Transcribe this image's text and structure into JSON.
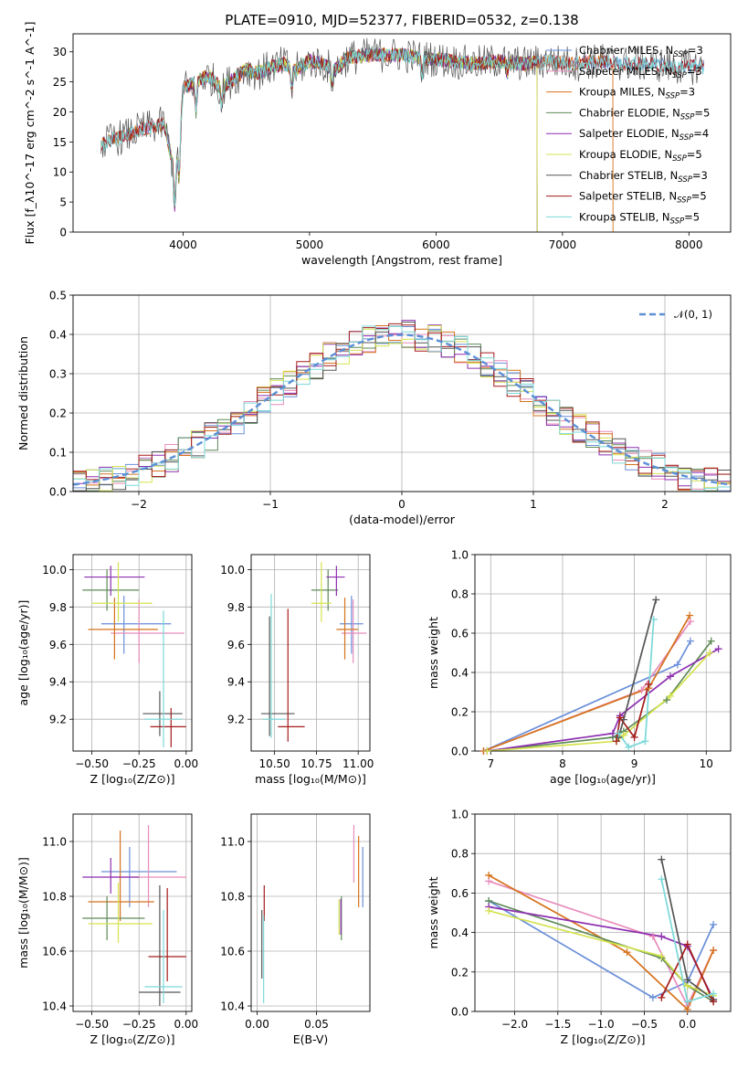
{
  "title": "PLATE=0910, MJD=52377, FIBERID=0532, z=0.138",
  "colors": {
    "Chabrier MILES": "#6a8fd8",
    "Salpeter MILES": "#e88cbb",
    "Kroupa MILES": "#d6721c",
    "Chabrier ELODIE": "#5e8a57",
    "Salpeter ELODIE": "#8d2fb0",
    "Kroupa ELODIE": "#d4e34f",
    "Chabrier STELIB": "#555555",
    "Salpeter STELIB": "#a51c1c",
    "Kroupa STELIB": "#7bd8d8"
  },
  "chart_data": [
    {
      "id": "spectrum",
      "type": "line",
      "xlabel": "wavelength [Angstrom, rest frame]",
      "ylabel": "Flux [f_λ10^-17 erg cm^-2 s^-1 A^-1]",
      "xlim": [
        3130,
        8330
      ],
      "ylim": [
        0,
        33
      ],
      "xticks": [
        4000,
        5000,
        6000,
        7000,
        8000
      ],
      "yticks": [
        0,
        5,
        10,
        15,
        20,
        25,
        30
      ],
      "legend_position": "right",
      "series": [
        {
          "name": "Chabrier MILES",
          "label": "Chabrier MILES, N",
          "sub": "SSP",
          "suffix": "=3",
          "color": "#6a8fd8"
        },
        {
          "name": "Salpeter MILES",
          "label": "Salpeter MILES, N",
          "sub": "SSP",
          "suffix": "=3",
          "color": "#e88cbb"
        },
        {
          "name": "Kroupa MILES",
          "label": "Kroupa MILES, N",
          "sub": "SSP",
          "suffix": "=3",
          "color": "#d6721c"
        },
        {
          "name": "Chabrier ELODIE",
          "label": "Chabrier ELODIE, N",
          "sub": "SSP",
          "suffix": "=5",
          "color": "#5e8a57"
        },
        {
          "name": "Salpeter ELODIE",
          "label": "Salpeter ELODIE, N",
          "sub": "SSP",
          "suffix": "=4",
          "color": "#8d2fb0"
        },
        {
          "name": "Kroupa ELODIE",
          "label": "Kroupa ELODIE, N",
          "sub": "SSP",
          "suffix": "=5",
          "color": "#d4e34f"
        },
        {
          "name": "Chabrier STELIB",
          "label": "Chabrier STELIB, N",
          "sub": "SSP",
          "suffix": "=3",
          "color": "#555555"
        },
        {
          "name": "Salpeter STELIB",
          "label": "Salpeter STELIB, N",
          "sub": "SSP",
          "suffix": "=5",
          "color": "#a51c1c"
        },
        {
          "name": "Kroupa STELIB",
          "label": "Kroupa STELIB, N",
          "sub": "SSP",
          "suffix": "=5",
          "color": "#7bd8d8"
        }
      ],
      "anchors": [
        [
          3350,
          14.5
        ],
        [
          3450,
          15.5
        ],
        [
          3550,
          16
        ],
        [
          3650,
          17
        ],
        [
          3750,
          17.5
        ],
        [
          3850,
          18
        ],
        [
          3930,
          10
        ],
        [
          3970,
          14
        ],
        [
          4000,
          24
        ],
        [
          4100,
          25
        ],
        [
          4200,
          26
        ],
        [
          4300,
          24
        ],
        [
          4400,
          25.5
        ],
        [
          4500,
          27
        ],
        [
          4600,
          26.5
        ],
        [
          4700,
          27.5
        ],
        [
          4800,
          28
        ],
        [
          4900,
          27
        ],
        [
          5000,
          28.5
        ],
        [
          5100,
          28
        ],
        [
          5200,
          27
        ],
        [
          5300,
          29
        ],
        [
          5500,
          29.5
        ],
        [
          5700,
          29.5
        ],
        [
          5900,
          29
        ],
        [
          6100,
          28.5
        ],
        [
          6300,
          28
        ],
        [
          6500,
          28.5
        ],
        [
          6700,
          28
        ],
        [
          6900,
          28.5
        ],
        [
          7100,
          28
        ],
        [
          7300,
          28.5
        ],
        [
          7500,
          28
        ],
        [
          7700,
          28
        ],
        [
          7900,
          27.5
        ],
        [
          8100,
          27.5
        ]
      ]
    },
    {
      "id": "residuals",
      "type": "area",
      "xlabel": "(data-model)/error",
      "ylabel": "Normed distribution",
      "xlim": [
        -2.5,
        2.5
      ],
      "ylim": [
        0,
        0.5
      ],
      "xticks": [
        -2,
        -1,
        0,
        1,
        2
      ],
      "yticks": [
        0.0,
        0.1,
        0.2,
        0.3,
        0.4,
        0.5
      ],
      "bin_width": 0.1,
      "grid": true,
      "reference": {
        "name": "𝒩(0, 1)",
        "mean": 0,
        "sigma": 1,
        "color": "#5b8fd6"
      }
    },
    {
      "id": "age-vs-Z",
      "type": "scatter",
      "xlabel": "Z [log₁₀(Z/Z⊙)]",
      "ylabel": "age  [log₁₀(age/yr)]",
      "xlim": [
        -0.6,
        0.03
      ],
      "ylim": [
        9.03,
        10.08
      ],
      "xticks": [
        -0.5,
        -0.25,
        0.0
      ],
      "yticks": [
        9.2,
        9.4,
        9.6,
        9.8,
        10.0
      ],
      "grid": true,
      "points": [
        {
          "s": "Chabrier MILES",
          "x": -0.33,
          "y": 9.71,
          "ex": [
            -0.45,
            -0.08
          ],
          "ey": [
            9.55,
            9.86
          ]
        },
        {
          "s": "Salpeter MILES",
          "x": -0.25,
          "y": 9.66,
          "ex": [
            -0.4,
            -0.01
          ],
          "ey": [
            9.5,
            9.84
          ]
        },
        {
          "s": "Kroupa MILES",
          "x": -0.38,
          "y": 9.68,
          "ex": [
            -0.52,
            -0.15
          ],
          "ey": [
            9.52,
            9.85
          ]
        },
        {
          "s": "Chabrier ELODIE",
          "x": -0.42,
          "y": 9.89,
          "ex": [
            -0.55,
            -0.25
          ],
          "ey": [
            9.78,
            10.0
          ]
        },
        {
          "s": "Salpeter ELODIE",
          "x": -0.4,
          "y": 9.96,
          "ex": [
            -0.54,
            -0.22
          ],
          "ey": [
            9.86,
            10.02
          ]
        },
        {
          "s": "Kroupa ELODIE",
          "x": -0.36,
          "y": 9.82,
          "ex": [
            -0.5,
            -0.18
          ],
          "ey": [
            9.72,
            10.04
          ]
        },
        {
          "s": "Chabrier STELIB",
          "x": -0.14,
          "y": 9.23,
          "ex": [
            -0.23,
            -0.02
          ],
          "ey": [
            9.11,
            9.35
          ]
        },
        {
          "s": "Salpeter STELIB",
          "x": -0.08,
          "y": 9.16,
          "ex": [
            -0.19,
            0.0
          ],
          "ey": [
            9.05,
            9.26
          ]
        },
        {
          "s": "Kroupa STELIB",
          "x": -0.12,
          "y": 9.2,
          "ex": [
            -0.22,
            -0.02
          ],
          "ey": [
            9.05,
            9.78
          ]
        }
      ]
    },
    {
      "id": "age-vs-mass",
      "type": "scatter",
      "xlabel": "mass [log₁₀(M/M⊙)]",
      "ylabel": "",
      "xlim": [
        10.36,
        11.07
      ],
      "ylim": [
        9.03,
        10.08
      ],
      "xticks": [
        10.5,
        10.75,
        11.0
      ],
      "yticks": [
        9.2,
        9.4,
        9.6,
        9.8,
        10.0
      ],
      "grid": true,
      "points": [
        {
          "s": "Chabrier MILES",
          "x": 10.96,
          "y": 9.71,
          "ex": [
            10.89,
            11.03
          ],
          "ey": [
            9.55,
            9.86
          ]
        },
        {
          "s": "Salpeter MILES",
          "x": 10.97,
          "y": 9.66,
          "ex": [
            10.9,
            11.05
          ],
          "ey": [
            9.5,
            9.84
          ]
        },
        {
          "s": "Kroupa MILES",
          "x": 10.92,
          "y": 9.68,
          "ex": [
            10.87,
            11.0
          ],
          "ey": [
            9.52,
            9.85
          ]
        },
        {
          "s": "Chabrier ELODIE",
          "x": 10.82,
          "y": 9.89,
          "ex": [
            10.72,
            10.88
          ],
          "ey": [
            9.78,
            10.0
          ]
        },
        {
          "s": "Salpeter ELODIE",
          "x": 10.87,
          "y": 9.96,
          "ex": [
            10.81,
            10.92
          ],
          "ey": [
            9.86,
            10.02
          ]
        },
        {
          "s": "Kroupa ELODIE",
          "x": 10.78,
          "y": 9.82,
          "ex": [
            10.72,
            10.84
          ],
          "ey": [
            9.72,
            10.04
          ]
        },
        {
          "s": "Chabrier STELIB",
          "x": 10.47,
          "y": 9.23,
          "ex": [
            10.42,
            10.62
          ],
          "ey": [
            9.11,
            9.75
          ]
        },
        {
          "s": "Salpeter STELIB",
          "x": 10.58,
          "y": 9.16,
          "ex": [
            10.52,
            10.68
          ],
          "ey": [
            9.08,
            9.79
          ]
        },
        {
          "s": "Kroupa STELIB",
          "x": 10.48,
          "y": 9.2,
          "ex": [
            10.43,
            10.56
          ],
          "ey": [
            9.1,
            9.87
          ]
        }
      ]
    },
    {
      "id": "mass-weight-vs-age",
      "type": "line",
      "xlabel": "age  [log₁₀(age/yr)]",
      "ylabel": "mass weight",
      "xlim": [
        6.78,
        10.34
      ],
      "ylim": [
        0,
        1.0
      ],
      "xticks": [
        7,
        8,
        9,
        10
      ],
      "yticks": [
        0.0,
        0.2,
        0.4,
        0.6,
        0.8,
        1.0
      ],
      "grid": true,
      "series": [
        {
          "s": "Chabrier MILES",
          "x": [
            6.9,
            9.6,
            9.78
          ],
          "y": [
            0.0,
            0.44,
            0.56
          ]
        },
        {
          "s": "Salpeter MILES",
          "x": [
            6.9,
            9.1,
            9.78
          ],
          "y": [
            0.0,
            0.31,
            0.66
          ]
        },
        {
          "s": "Kroupa MILES",
          "x": [
            6.9,
            9.2,
            9.77
          ],
          "y": [
            0.0,
            0.32,
            0.69
          ]
        },
        {
          "s": "Chabrier ELODIE",
          "x": [
            6.95,
            8.7,
            8.85,
            9.45,
            10.07
          ],
          "y": [
            0.0,
            0.07,
            0.1,
            0.26,
            0.56
          ]
        },
        {
          "s": "Salpeter ELODIE",
          "x": [
            6.95,
            8.7,
            8.8,
            9.5,
            10.17
          ],
          "y": [
            0.0,
            0.09,
            0.18,
            0.38,
            0.52
          ]
        },
        {
          "s": "Kroupa ELODIE",
          "x": [
            6.95,
            8.75,
            8.85,
            9.5,
            10.05
          ],
          "y": [
            0.0,
            0.05,
            0.08,
            0.28,
            0.5
          ]
        },
        {
          "s": "Chabrier STELIB",
          "x": [
            8.78,
            8.85,
            9.3
          ],
          "y": [
            0.07,
            0.16,
            0.77
          ]
        },
        {
          "s": "Salpeter STELIB",
          "x": [
            8.75,
            8.8,
            9.0,
            9.2
          ],
          "y": [
            0.05,
            0.17,
            0.07,
            0.34
          ]
        },
        {
          "s": "Kroupa STELIB",
          "x": [
            8.78,
            8.92,
            9.15,
            9.27
          ],
          "y": [
            0.09,
            0.02,
            0.05,
            0.67
          ]
        }
      ]
    },
    {
      "id": "mass-vs-Z",
      "type": "scatter",
      "xlabel": "Z [log₁₀(Z/Z⊙)]",
      "ylabel": "mass [log₁₀(M/M⊙)]",
      "xlim": [
        -0.6,
        0.03
      ],
      "ylim": [
        10.38,
        11.1
      ],
      "xticks": [
        -0.5,
        -0.25,
        0.0
      ],
      "yticks": [
        10.4,
        10.6,
        10.8,
        11.0
      ],
      "grid": true,
      "points": [
        {
          "s": "Chabrier MILES",
          "x": -0.3,
          "y": 10.89,
          "ex": [
            -0.45,
            -0.05
          ],
          "ey": [
            10.76,
            10.98
          ]
        },
        {
          "s": "Salpeter MILES",
          "x": -0.2,
          "y": 10.87,
          "ex": [
            -0.4,
            0.0
          ],
          "ey": [
            10.76,
            11.06
          ]
        },
        {
          "s": "Kroupa MILES",
          "x": -0.35,
          "y": 10.78,
          "ex": [
            -0.52,
            -0.17
          ],
          "ey": [
            10.71,
            11.04
          ]
        },
        {
          "s": "Chabrier ELODIE",
          "x": -0.42,
          "y": 10.72,
          "ex": [
            -0.55,
            -0.22
          ],
          "ey": [
            10.64,
            10.8
          ]
        },
        {
          "s": "Salpeter ELODIE",
          "x": -0.4,
          "y": 10.87,
          "ex": [
            -0.55,
            -0.25
          ],
          "ey": [
            10.81,
            10.94
          ]
        },
        {
          "s": "Kroupa ELODIE",
          "x": -0.36,
          "y": 10.7,
          "ex": [
            -0.52,
            -0.18
          ],
          "ey": [
            10.63,
            10.85
          ]
        },
        {
          "s": "Chabrier STELIB",
          "x": -0.14,
          "y": 10.45,
          "ex": [
            -0.25,
            -0.03
          ],
          "ey": [
            10.4,
            10.84
          ]
        },
        {
          "s": "Salpeter STELIB",
          "x": -0.1,
          "y": 10.58,
          "ex": [
            -0.2,
            0.0
          ],
          "ey": [
            10.49,
            10.83
          ]
        },
        {
          "s": "Kroupa STELIB",
          "x": -0.12,
          "y": 10.47,
          "ex": [
            -0.22,
            -0.02
          ],
          "ey": [
            10.41,
            10.75
          ]
        }
      ]
    },
    {
      "id": "mass-vs-EBV",
      "type": "scatter",
      "xlabel": "E(B-V)",
      "ylabel": "",
      "xlim": [
        -0.005,
        0.095
      ],
      "ylim": [
        10.38,
        11.1
      ],
      "xticks": [
        0.0,
        0.05
      ],
      "xticklabels": [
        "0.00",
        "0.05"
      ],
      "yticks": [
        10.4,
        10.6,
        10.8,
        11.0
      ],
      "grid": true,
      "points": [
        {
          "s": "Chabrier MILES",
          "x": 0.089,
          "ey": [
            10.76,
            10.98
          ]
        },
        {
          "s": "Salpeter MILES",
          "x": 0.0815,
          "ey": [
            10.85,
            11.06
          ]
        },
        {
          "s": "Kroupa MILES",
          "x": 0.0855,
          "ey": [
            10.76,
            11.02
          ]
        },
        {
          "s": "Chabrier ELODIE",
          "x": 0.071,
          "ey": [
            10.64,
            10.8
          ]
        },
        {
          "s": "Salpeter ELODIE",
          "x": 0.0705,
          "ey": [
            10.66,
            10.79
          ]
        },
        {
          "s": "Kroupa ELODIE",
          "x": 0.069,
          "ey": [
            10.66,
            10.79
          ]
        },
        {
          "s": "Chabrier STELIB",
          "x": 0.004,
          "ey": [
            10.5,
            10.75
          ]
        },
        {
          "s": "Salpeter STELIB",
          "x": 0.006,
          "ey": [
            10.71,
            10.84
          ]
        },
        {
          "s": "Kroupa STELIB",
          "x": 0.0055,
          "ey": [
            10.41,
            10.73
          ]
        }
      ]
    },
    {
      "id": "mass-weight-vs-Z",
      "type": "line",
      "xlabel": "Z [log₁₀(Z/Z⊙)]",
      "ylabel": "mass weight",
      "xlim": [
        -2.46,
        0.5
      ],
      "ylim": [
        0,
        1.0
      ],
      "xticks": [
        -2.0,
        -1.5,
        -1.0,
        -0.5,
        0.0
      ],
      "yticks": [
        0.0,
        0.2,
        0.4,
        0.6,
        0.8,
        1.0
      ],
      "grid": true,
      "series": [
        {
          "s": "Chabrier MILES",
          "x": [
            -2.3,
            -0.4,
            0.0,
            0.3
          ],
          "y": [
            0.56,
            0.07,
            0.15,
            0.44
          ]
        },
        {
          "s": "Salpeter MILES",
          "x": [
            -2.3,
            -0.4,
            0.0,
            0.3
          ],
          "y": [
            0.66,
            0.38,
            0.03,
            0.31
          ]
        },
        {
          "s": "Kroupa MILES",
          "x": [
            -2.3,
            -0.7,
            0.0,
            0.3
          ],
          "y": [
            0.69,
            0.3,
            0.01,
            0.31
          ]
        },
        {
          "s": "Chabrier ELODIE",
          "x": [
            -2.3,
            -0.3,
            0.0,
            0.3
          ],
          "y": [
            0.56,
            0.27,
            0.13,
            0.05
          ]
        },
        {
          "s": "Salpeter ELODIE",
          "x": [
            -2.3,
            -0.3,
            0.0,
            0.3
          ],
          "y": [
            0.53,
            0.38,
            0.33,
            0.06
          ]
        },
        {
          "s": "Kroupa ELODIE",
          "x": [
            -2.3,
            -0.3,
            0.0,
            0.3
          ],
          "y": [
            0.51,
            0.28,
            0.13,
            0.08
          ]
        },
        {
          "s": "Chabrier STELIB",
          "x": [
            -0.3,
            0.0,
            0.3
          ],
          "y": [
            0.77,
            0.16,
            0.06
          ]
        },
        {
          "s": "Salpeter STELIB",
          "x": [
            -0.3,
            0.0,
            0.3
          ],
          "y": [
            0.07,
            0.34,
            0.05
          ]
        },
        {
          "s": "Kroupa STELIB",
          "x": [
            -0.3,
            0.0,
            0.3
          ],
          "y": [
            0.67,
            0.05,
            0.09
          ]
        }
      ]
    }
  ]
}
